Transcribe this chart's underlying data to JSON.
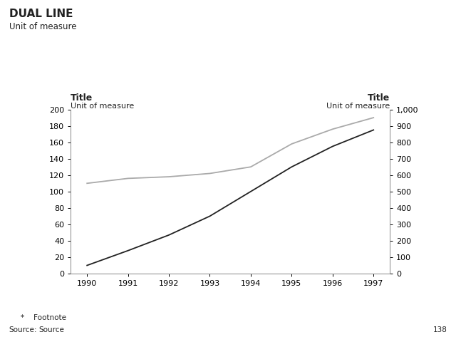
{
  "title_main": "DUAL LINE",
  "subtitle_main": "Unit of measure",
  "left_axis_title": "Title",
  "left_axis_unit": "Unit of measure",
  "right_axis_title": "Title",
  "right_axis_unit": "Unit of measure",
  "footnote": "*    Footnote",
  "source_label": "Source:",
  "source_value": "Source",
  "page_number": "138",
  "x_values": [
    1990,
    1991,
    1992,
    1993,
    1994,
    1995,
    1996,
    1997
  ],
  "line1_values": [
    10,
    28,
    47,
    70,
    100,
    130,
    155,
    175
  ],
  "line2_values": [
    550,
    580,
    590,
    610,
    650,
    790,
    880,
    950
  ],
  "line1_color": "#222222",
  "line2_color": "#aaaaaa",
  "left_ylim": [
    0,
    200
  ],
  "right_ylim": [
    0,
    1000
  ],
  "left_yticks": [
    0,
    20,
    40,
    60,
    80,
    100,
    120,
    140,
    160,
    180,
    200
  ],
  "right_yticks": [
    0,
    100,
    200,
    300,
    400,
    500,
    600,
    700,
    800,
    900,
    1000
  ],
  "bg_color": "#ffffff",
  "font_color": "#222222"
}
